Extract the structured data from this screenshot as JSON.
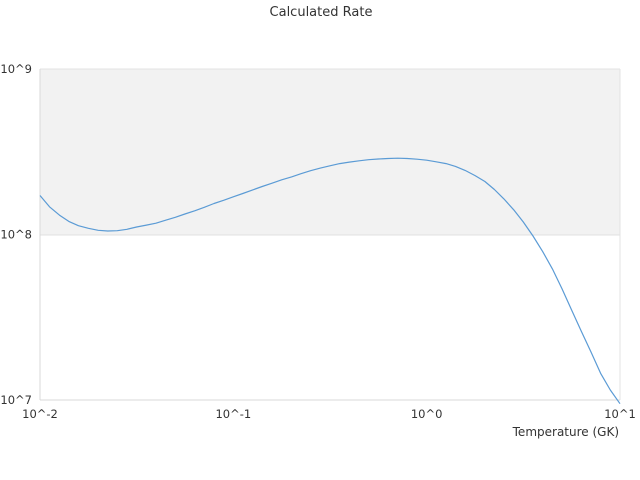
{
  "chart_data": {
    "type": "line",
    "title": "Calculated Rate",
    "xlabel": "Temperature (GK)",
    "ylabel": "",
    "x_scale": "log",
    "y_scale": "log",
    "xlim": [
      0.01,
      10
    ],
    "ylim": [
      10000000,
      1000000000
    ],
    "x_ticks": [
      0.01,
      0.1,
      1,
      10
    ],
    "x_tick_labels": [
      "10^-2",
      "10^-1",
      "10^0",
      "10^1"
    ],
    "y_ticks": [
      10000000,
      100000000,
      1000000000
    ],
    "y_tick_labels": [
      "10^7",
      "10^8",
      "10^9"
    ],
    "grid": false,
    "band_color": "#f2f2f2",
    "series_color": "#5b9bd5",
    "series": [
      {
        "x": [
          0.01,
          0.0112,
          0.0126,
          0.0141,
          0.0158,
          0.0178,
          0.02,
          0.0224,
          0.0251,
          0.0282,
          0.0316,
          0.0355,
          0.0398,
          0.0447,
          0.0501,
          0.0562,
          0.0631,
          0.0708,
          0.0794,
          0.0891,
          0.1,
          0.112,
          0.126,
          0.141,
          0.158,
          0.178,
          0.2,
          0.224,
          0.251,
          0.282,
          0.316,
          0.355,
          0.398,
          0.447,
          0.501,
          0.562,
          0.631,
          0.708,
          0.794,
          0.891,
          1.0,
          1.12,
          1.26,
          1.41,
          1.58,
          1.78,
          2.0,
          2.24,
          2.51,
          2.82,
          3.16,
          3.55,
          3.98,
          4.47,
          5.01,
          5.62,
          6.31,
          7.08,
          7.94,
          8.91,
          10.0
        ],
        "y": [
          172000000,
          147000000,
          131000000,
          120000000,
          113000000,
          109000000,
          106000000,
          105000000,
          105500000,
          107500000,
          111000000,
          114000000,
          117000000,
          122000000,
          127000000,
          133000000,
          139000000,
          146000000,
          154000000,
          161000000,
          169000000,
          177000000,
          186000000,
          195000000,
          204000000,
          214000000,
          223000000,
          233000000,
          243000000,
          252000000,
          260000000,
          268000000,
          274000000,
          279000000,
          283000000,
          286000000,
          288000000,
          289000000,
          288000000,
          285000000,
          281000000,
          275000000,
          268000000,
          258000000,
          244000000,
          227000000,
          209000000,
          187000000,
          164000000,
          141000000,
          119000000,
          98000000,
          79000000,
          62000000,
          47000000,
          35000000,
          26000000,
          19500000,
          14500000,
          11500000,
          9500000
        ]
      }
    ]
  }
}
